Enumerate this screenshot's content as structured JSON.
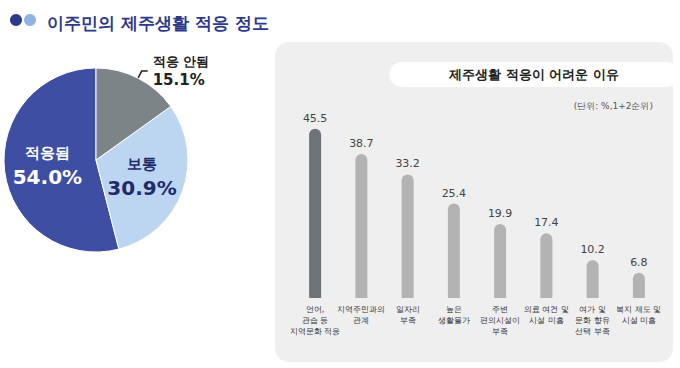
{
  "chart_data": [
    {
      "type": "pie",
      "title": "이주민의 제주생활 적응 정도",
      "categories": [
        "적응됨",
        "보통",
        "적응 안됨"
      ],
      "values": [
        54.0,
        30.9,
        15.1
      ],
      "value_labels": [
        "54.0%",
        "30.9%",
        "15.1%"
      ],
      "colors": [
        "#3d4ea3",
        "#bcd6f2",
        "#7d8488"
      ],
      "data_labels": true,
      "legend": false
    },
    {
      "type": "bar",
      "title": "제주생활 적응이 어려운 이유",
      "subtitle": "(단위: %,1+2순위)",
      "categories": [
        "언어,\n관습 등\n지역문화 적응",
        "지역주민과의\n관계",
        "일자리\n부족",
        "높은\n생활물가",
        "주변\n편의시설이\n부족",
        "의료 여건 및\n시설 미흡",
        "여가 및\n문화 향유\n선택 부족",
        "복지 제도 및\n시설 미흡"
      ],
      "values": [
        45.5,
        38.7,
        33.2,
        25.4,
        19.9,
        17.4,
        10.2,
        6.8
      ],
      "colors": [
        "#6d7378",
        "#b3b3b3",
        "#b3b3b3",
        "#b3b3b3",
        "#b3b3b3",
        "#b3b3b3",
        "#b3b3b3",
        "#b3b3b3"
      ],
      "ylim": [
        0,
        50
      ],
      "grid": false,
      "tick_labels": "x",
      "data_labels": true,
      "legend": false
    }
  ]
}
